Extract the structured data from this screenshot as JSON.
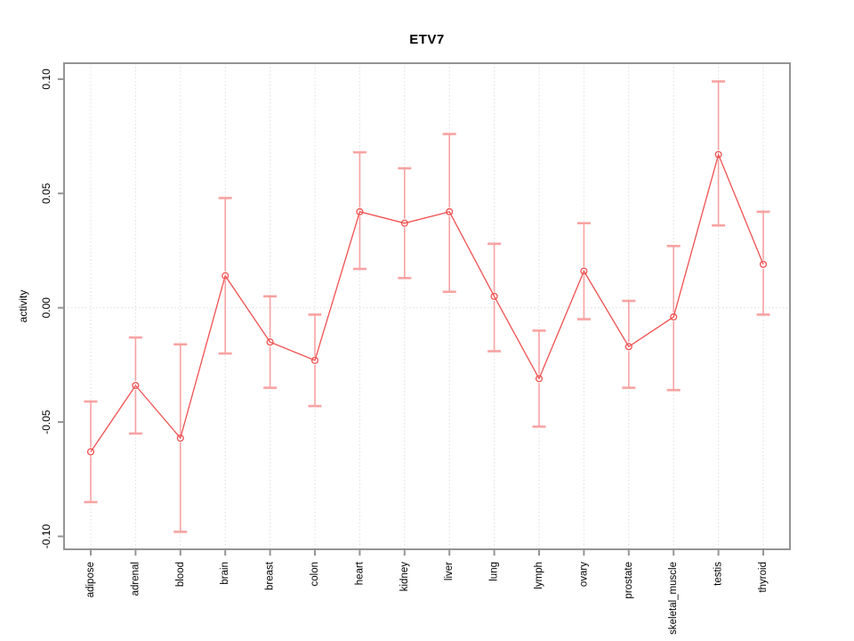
{
  "chart_data": {
    "type": "line",
    "title": "ETV7",
    "xlabel": "",
    "ylabel": "activity",
    "ylim": [
      -0.11,
      0.11
    ],
    "yticks": [
      0.1,
      0.05,
      0.0,
      -0.05,
      -0.1
    ],
    "ytick_labels": [
      "0.10",
      "0.05",
      "0.00",
      "-0.05",
      "-0.10"
    ],
    "grid": "vertical dotted line at each category, horizontal dotted line at y=0",
    "legend_position": "none",
    "marker": "open-circle",
    "categories": [
      "adipose",
      "adrenal",
      "blood",
      "brain",
      "breast",
      "colon",
      "heart",
      "kidney",
      "liver",
      "lung",
      "lymph",
      "ovary",
      "prostate",
      "skeletal_muscle",
      "testis",
      "thyroid"
    ],
    "series": [
      {
        "name": "ETV7 activity",
        "values": [
          -0.063,
          -0.034,
          -0.057,
          0.014,
          -0.015,
          -0.023,
          0.042,
          0.037,
          0.042,
          0.005,
          -0.031,
          0.016,
          -0.017,
          -0.004,
          0.067,
          0.019
        ],
        "error_low": [
          -0.085,
          -0.055,
          -0.098,
          -0.02,
          -0.035,
          -0.043,
          0.017,
          0.013,
          0.007,
          -0.019,
          -0.052,
          -0.005,
          -0.035,
          -0.036,
          0.036,
          -0.003
        ],
        "error_high": [
          -0.041,
          -0.013,
          -0.016,
          0.048,
          0.005,
          -0.003,
          0.068,
          0.061,
          0.076,
          0.028,
          -0.01,
          0.037,
          0.003,
          0.027,
          0.099,
          0.042
        ]
      }
    ],
    "colors": {
      "line": "#f05050",
      "marker": "#f05050",
      "error_bar": "#f8a2a2",
      "grid": "#dedede",
      "border": "#949494",
      "text": "#000000",
      "background": "#ffffff"
    }
  }
}
